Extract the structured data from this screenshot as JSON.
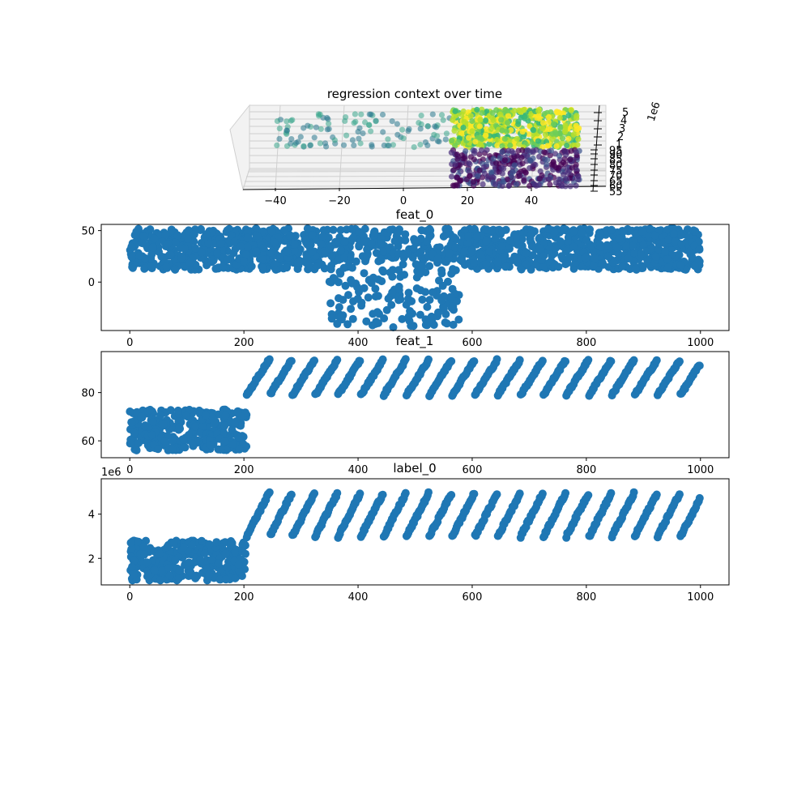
{
  "chart_data": [
    {
      "type": "scatter",
      "projection": "3d",
      "title": "regression context over time",
      "x_ticks": [
        "−40",
        "−20",
        "0",
        "20",
        "40"
      ],
      "y_ticks": [
        "55",
        "60",
        "65",
        "70",
        "75",
        "80",
        "85",
        "90",
        "95"
      ],
      "z_ticks": [
        "1",
        "2",
        "3",
        "4",
        "5"
      ],
      "z_offset_label": "1e6",
      "xlim": [
        -48,
        57
      ],
      "zlim": [
        0.5,
        5.6
      ],
      "colormap": "viridis",
      "clusters": [
        {
          "x_range": [
            -40,
            15
          ],
          "y_range": [
            80,
            95
          ],
          "z": 4.0,
          "color": "#3aa58c",
          "alpha": 0.55
        },
        {
          "x_range": [
            15,
            55
          ],
          "y_range": [
            80,
            95
          ],
          "z": 4.5,
          "color": "#b5de2b",
          "alpha": 0.85
        },
        {
          "x_range": [
            15,
            55
          ],
          "y_range": [
            55,
            73
          ],
          "z": 1.5,
          "color": "#472c7a",
          "alpha": 0.7
        }
      ]
    },
    {
      "type": "scatter",
      "title": "feat_0",
      "x_ticks": [
        "0",
        "200",
        "400",
        "600",
        "800",
        "1000"
      ],
      "y_ticks": [
        "0",
        "50"
      ],
      "xlim": [
        -50,
        1050
      ],
      "ylim": [
        -47,
        56
      ],
      "color": "#1f77b4",
      "segments": [
        {
          "x_range": [
            0,
            350
          ],
          "y_range": [
            12,
            52
          ]
        },
        {
          "x_range": [
            350,
            580
          ],
          "y_range": [
            -44,
            52
          ]
        },
        {
          "x_range": [
            580,
            1000
          ],
          "y_range": [
            12,
            52
          ]
        }
      ]
    },
    {
      "type": "scatter",
      "title": "feat_1",
      "x_ticks": [
        "0",
        "200",
        "400",
        "600",
        "800",
        "1000"
      ],
      "y_ticks": [
        "60",
        "80"
      ],
      "xlim": [
        -50,
        1050
      ],
      "ylim": [
        53,
        97
      ],
      "color": "#1f77b4",
      "segments": [
        {
          "x_range": [
            0,
            205
          ],
          "y_range": [
            56,
            73
          ],
          "pattern": "random"
        },
        {
          "x_range": [
            205,
            1000
          ],
          "y_range": [
            79,
            94
          ],
          "pattern": "sawtooth",
          "period": 40
        }
      ]
    },
    {
      "type": "scatter",
      "title": "label_0",
      "x_ticks": [
        "0",
        "200",
        "400",
        "600",
        "800",
        "1000"
      ],
      "y_ticks": [
        "2",
        "4"
      ],
      "y_offset_label": "1e6",
      "xlim": [
        -50,
        1050
      ],
      "ylim": [
        0.8,
        5.6
      ],
      "color": "#1f77b4",
      "segments": [
        {
          "x_range": [
            0,
            205
          ],
          "y_range": [
            1.0,
            2.8
          ],
          "pattern": "random"
        },
        {
          "x_range": [
            205,
            1000
          ],
          "y_range": [
            3.0,
            5.0
          ],
          "pattern": "sawtooth",
          "period": 40
        }
      ]
    }
  ]
}
